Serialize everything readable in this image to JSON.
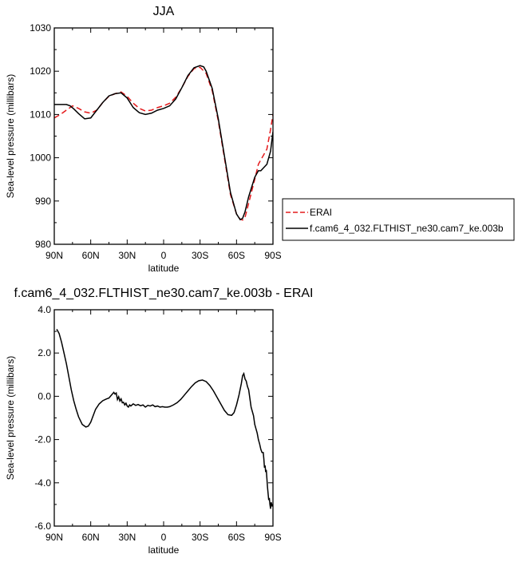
{
  "chart_data": [
    {
      "type": "line",
      "title": "JJA",
      "xlabel": "latitude",
      "ylabel": "Sea-level pressure (millibars)",
      "xlim": [
        90,
        -90
      ],
      "ylim": [
        980,
        1030
      ],
      "x_ticks": [
        90,
        60,
        30,
        0,
        -30,
        -60,
        -90
      ],
      "x_tick_labels": [
        "90N",
        "60N",
        "30N",
        "0",
        "30S",
        "60S",
        "90S"
      ],
      "y_ticks": [
        980,
        990,
        1000,
        1010,
        1020,
        1030
      ],
      "y_tick_labels": [
        "980",
        "990",
        "1000",
        "1010",
        "1020",
        "1030"
      ],
      "legend_position": "right",
      "series": [
        {
          "name": "ERAI",
          "color": "#e41a1c",
          "dash": "dashed",
          "x": [
            90,
            85,
            80,
            75,
            70,
            65,
            60,
            55,
            50,
            45,
            40,
            35,
            30,
            25,
            20,
            15,
            10,
            5,
            0,
            -5,
            -10,
            -15,
            -20,
            -25,
            -30,
            -35,
            -40,
            -45,
            -50,
            -55,
            -60,
            -63,
            -65,
            -67,
            -70,
            -75,
            -78,
            -80,
            -85,
            -88,
            -90
          ],
          "y": [
            1009.2,
            1010.0,
            1011.0,
            1012.0,
            1011.4,
            1010.6,
            1010.3,
            1011.0,
            1012.8,
            1014.2,
            1014.8,
            1015.2,
            1014.2,
            1012.6,
            1011.4,
            1010.8,
            1011.0,
            1011.6,
            1012.0,
            1012.6,
            1014.0,
            1016.2,
            1018.8,
            1020.6,
            1020.9,
            1019.5,
            1015.5,
            1008.5,
            1000.0,
            991.5,
            987.0,
            985.8,
            985.6,
            986.2,
            989.5,
            995.0,
            998.5,
            999.5,
            1002.0,
            1006.5,
            1010.0
          ]
        },
        {
          "name": "f.cam6_4_032.FLTHIST_ne30.cam7_ke.003b",
          "color": "#000000",
          "dash": "solid",
          "x": [
            90,
            85,
            80,
            77,
            74,
            70,
            65,
            60,
            55,
            50,
            45,
            40,
            35,
            30,
            25,
            20,
            15,
            10,
            5,
            0,
            -5,
            -10,
            -15,
            -20,
            -25,
            -30,
            -33,
            -35,
            -40,
            -45,
            -50,
            -55,
            -60,
            -63,
            -65,
            -67,
            -70,
            -75,
            -78,
            -80,
            -85,
            -88,
            -90
          ],
          "y": [
            1012.3,
            1012.3,
            1012.3,
            1012.0,
            1011.3,
            1010.2,
            1009.0,
            1009.2,
            1011.0,
            1012.8,
            1014.3,
            1014.8,
            1015.0,
            1013.8,
            1011.6,
            1010.4,
            1010.0,
            1010.3,
            1011.0,
            1011.4,
            1012.0,
            1013.6,
            1016.2,
            1019.0,
            1020.8,
            1021.3,
            1021.0,
            1020.0,
            1016.0,
            1009.0,
            1000.5,
            992.0,
            987.0,
            985.7,
            986.0,
            987.5,
            991.0,
            995.5,
            997.0,
            997.0,
            998.5,
            1001.5,
            1006.0
          ]
        }
      ]
    },
    {
      "type": "line",
      "title": "f.cam6_4_032.FLTHIST_ne30.cam7_ke.003b - ERAI",
      "xlabel": "latitude",
      "ylabel": "Sea-level pressure (millibars)",
      "xlim": [
        90,
        -90
      ],
      "ylim": [
        -6,
        4
      ],
      "x_ticks": [
        90,
        60,
        30,
        0,
        -30,
        -60,
        -90
      ],
      "x_tick_labels": [
        "90N",
        "60N",
        "30N",
        "0",
        "30S",
        "60S",
        "90S"
      ],
      "y_ticks": [
        -6,
        -4,
        -2,
        0,
        2,
        4
      ],
      "y_tick_labels": [
        "-6.0",
        "-4.0",
        "-2.0",
        "0.0",
        "2.0",
        "4.0"
      ],
      "series": [
        {
          "color": "#000000",
          "dash": "solid",
          "x": [
            88,
            86,
            84,
            82,
            80,
            78,
            76,
            74,
            72,
            70,
            67,
            64,
            62,
            60,
            58,
            56,
            53,
            50,
            47,
            45,
            43,
            41,
            40,
            39,
            38,
            37,
            36,
            35,
            34,
            33,
            32,
            31,
            30,
            29,
            28,
            27,
            25,
            23,
            21,
            19,
            17,
            15,
            13,
            11,
            9,
            7,
            5,
            3,
            1,
            -1,
            -3,
            -5,
            -8,
            -11,
            -14,
            -17,
            -20,
            -23,
            -26,
            -29,
            -32,
            -35,
            -38,
            -41,
            -44,
            -47,
            -50,
            -53,
            -56,
            -58,
            -60,
            -62,
            -64,
            -65,
            -66,
            -67,
            -68,
            -69,
            -70,
            -71,
            -72,
            -73,
            -74,
            -75,
            -76,
            -77,
            -78,
            -79,
            -80,
            -81,
            -82,
            -82.5,
            -83,
            -83.5,
            -84,
            -84.5,
            -85,
            -85.5,
            -86,
            -86.5,
            -87,
            -87.5,
            -88,
            -88.5,
            -89,
            -89.5
          ],
          "y": [
            3.1,
            2.9,
            2.5,
            2.0,
            1.5,
            0.9,
            0.3,
            -0.2,
            -0.6,
            -0.95,
            -1.3,
            -1.42,
            -1.38,
            -1.2,
            -0.9,
            -0.6,
            -0.35,
            -0.2,
            -0.12,
            -0.08,
            0.05,
            0.18,
            0.1,
            0.15,
            -0.15,
            -0.02,
            -0.22,
            -0.12,
            -0.3,
            -0.28,
            -0.4,
            -0.32,
            -0.45,
            -0.5,
            -0.4,
            -0.45,
            -0.35,
            -0.42,
            -0.38,
            -0.44,
            -0.4,
            -0.5,
            -0.42,
            -0.45,
            -0.4,
            -0.48,
            -0.45,
            -0.5,
            -0.48,
            -0.5,
            -0.5,
            -0.48,
            -0.4,
            -0.3,
            -0.15,
            0.05,
            0.25,
            0.45,
            0.62,
            0.72,
            0.75,
            0.68,
            0.5,
            0.25,
            -0.05,
            -0.35,
            -0.65,
            -0.85,
            -0.88,
            -0.75,
            -0.4,
            0.05,
            0.6,
            0.95,
            1.05,
            0.8,
            0.7,
            0.45,
            0.3,
            -0.1,
            -0.5,
            -0.7,
            -0.9,
            -1.3,
            -1.5,
            -1.7,
            -2.0,
            -2.2,
            -2.45,
            -2.6,
            -2.6,
            -2.9,
            -3.3,
            -3.2,
            -3.5,
            -3.4,
            -3.8,
            -4.2,
            -4.5,
            -4.8,
            -4.7,
            -5.0,
            -5.2,
            -4.9,
            -5.0,
            -5.1
          ]
        }
      ]
    }
  ]
}
